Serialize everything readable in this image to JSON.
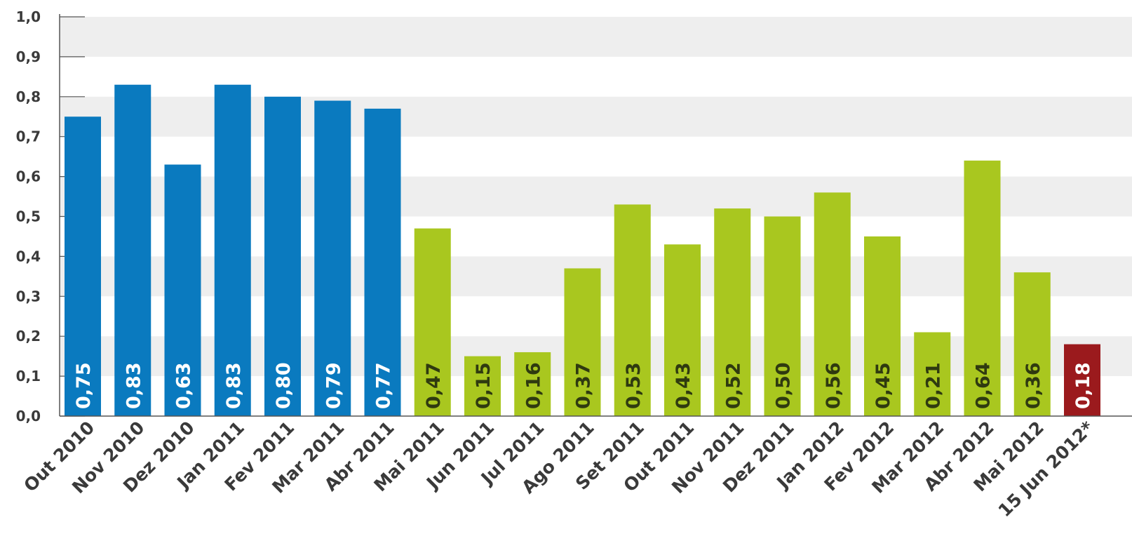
{
  "chart_data": {
    "type": "bar",
    "title": "",
    "xlabel": "",
    "ylabel": "",
    "ylim": [
      0,
      1.0
    ],
    "yticks": [
      "0,0",
      "0,1",
      "0,2",
      "0,3",
      "0,4",
      "0,5",
      "0,6",
      "0,7",
      "0,8",
      "0,9",
      "1,0"
    ],
    "grid": "alternating horizontal bands",
    "legend": "none",
    "categories": [
      "Out 2010",
      "Nov 2010",
      "Dez 2010",
      "Jan 2011",
      "Fev 2011",
      "Mar 2011",
      "Abr 2011",
      "Mai 2011",
      "Jun 2011",
      "Jul 2011",
      "Ago 2011",
      "Set 2011",
      "Out 2011",
      "Nov 2011",
      "Dez 2011",
      "Jan 2012",
      "Fev 2012",
      "Mar 2012",
      "Abr 2012",
      "Mai 2012",
      "15 Jun 2012*"
    ],
    "values": [
      0.75,
      0.83,
      0.63,
      0.83,
      0.8,
      0.79,
      0.77,
      0.47,
      0.15,
      0.16,
      0.37,
      0.53,
      0.43,
      0.52,
      0.5,
      0.56,
      0.45,
      0.21,
      0.64,
      0.36,
      0.18
    ],
    "value_labels": [
      "0,75",
      "0,83",
      "0,63",
      "0,83",
      "0,80",
      "0,79",
      "0,77",
      "0,47",
      "0,15",
      "0,16",
      "0,37",
      "0,53",
      "0,43",
      "0,52",
      "0,50",
      "0,56",
      "0,45",
      "0,21",
      "0,64",
      "0,36",
      "0,18"
    ],
    "bar_colors": [
      "#0a7abf",
      "#0a7abf",
      "#0a7abf",
      "#0a7abf",
      "#0a7abf",
      "#0a7abf",
      "#0a7abf",
      "#a9c71f",
      "#a9c71f",
      "#a9c71f",
      "#a9c71f",
      "#a9c71f",
      "#a9c71f",
      "#a9c71f",
      "#a9c71f",
      "#a9c71f",
      "#a9c71f",
      "#a9c71f",
      "#a9c71f",
      "#a9c71f",
      "#9b1a1d"
    ],
    "label_colors": [
      "#ffffff",
      "#ffffff",
      "#ffffff",
      "#ffffff",
      "#ffffff",
      "#ffffff",
      "#ffffff",
      "#2f3a10",
      "#2f3a10",
      "#2f3a10",
      "#2f3a10",
      "#2f3a10",
      "#2f3a10",
      "#2f3a10",
      "#2f3a10",
      "#2f3a10",
      "#2f3a10",
      "#2f3a10",
      "#2f3a10",
      "#2f3a10",
      "#ffffff"
    ],
    "colors": {
      "band": "#eeeeee",
      "axis": "#555555",
      "text": "#3a3a3a"
    }
  }
}
